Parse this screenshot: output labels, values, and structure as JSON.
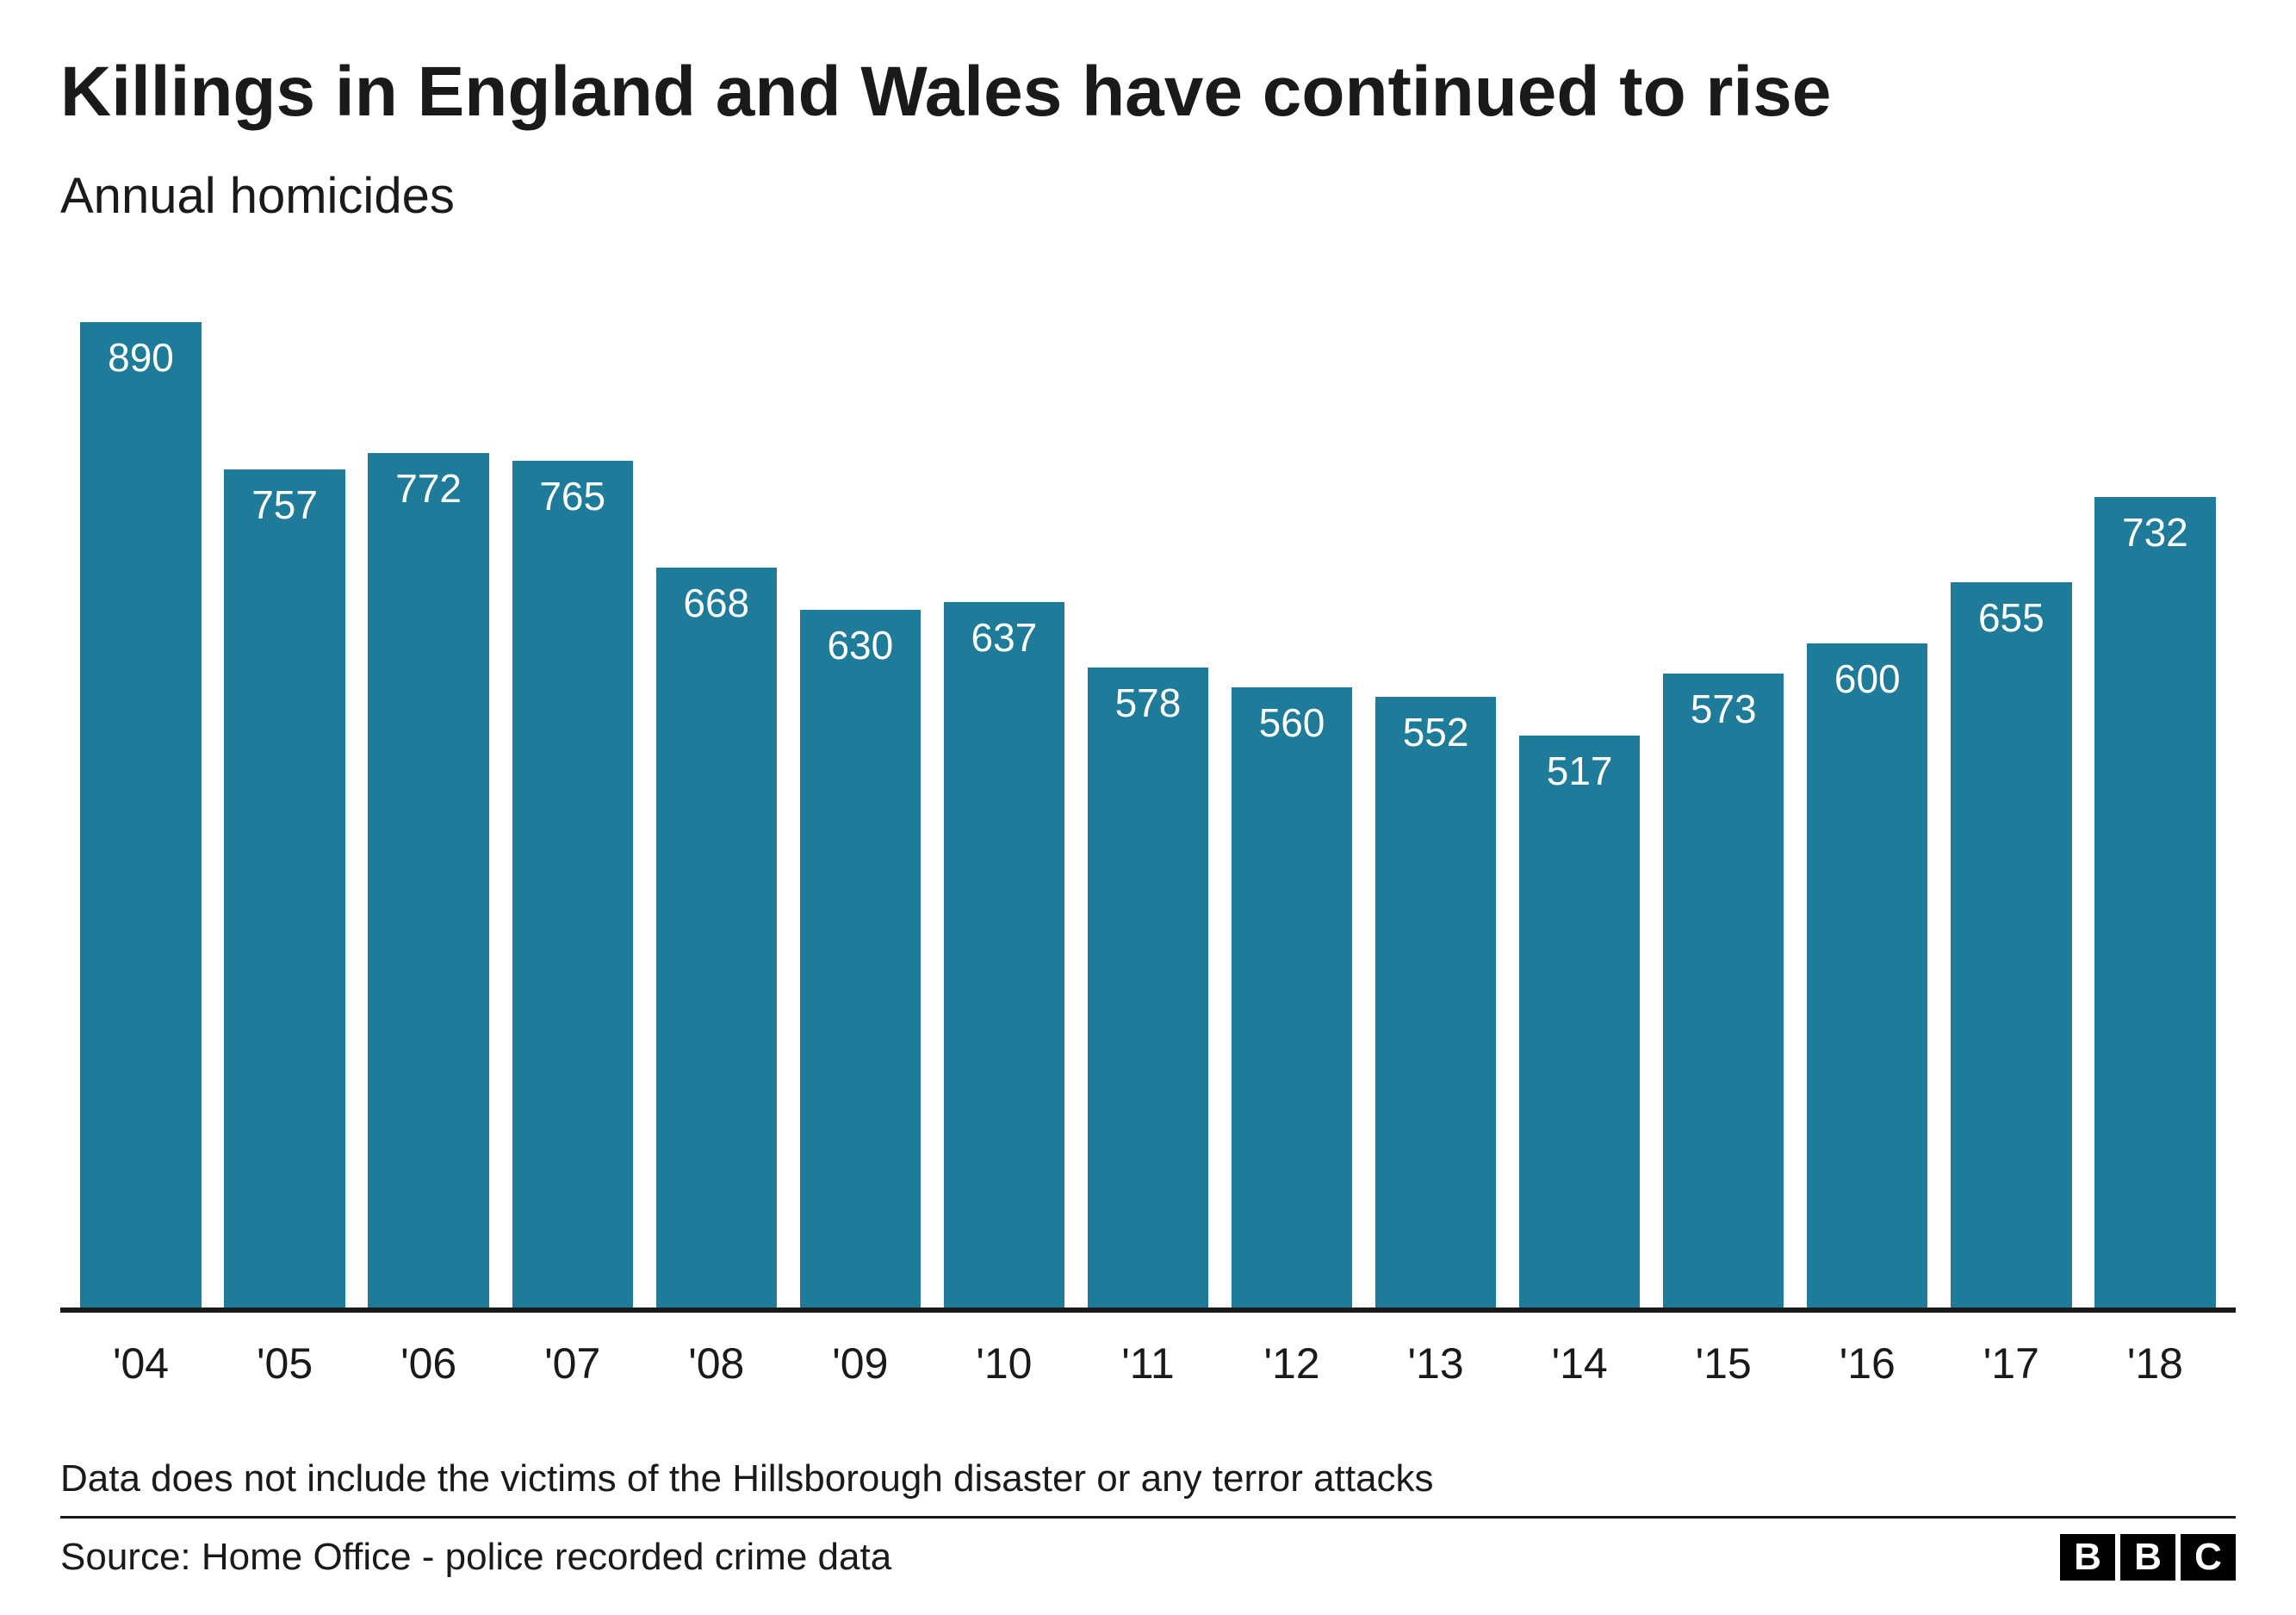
{
  "chart": {
    "type": "bar",
    "title": "Killings in England and Wales have continued to rise",
    "subtitle": "Annual homicides",
    "categories": [
      "'04",
      "'05",
      "'06",
      "'07",
      "'08",
      "'09",
      "'10",
      "'11",
      "'12",
      "'13",
      "'14",
      "'15",
      "'16",
      "'17",
      "'18"
    ],
    "values": [
      890,
      757,
      772,
      765,
      668,
      630,
      637,
      578,
      560,
      552,
      517,
      573,
      600,
      655,
      732
    ],
    "ymax": 900,
    "bar_color": "#1e7b99",
    "value_label_color": "#ffffff",
    "background_color": "#ffffff",
    "axis_color": "#1a1a1a",
    "title_fontsize": 82,
    "subtitle_fontsize": 58,
    "value_fontsize": 46,
    "xaxis_fontsize": 50,
    "footnote_fontsize": 44,
    "source_fontsize": 44,
    "bar_width_pct": 84,
    "footnote": "Data does not include the victims of the Hillsborough disaster or any terror attacks",
    "source": "Source: Home Office - police recorded crime data",
    "logo_letters": [
      "B",
      "B",
      "C"
    ]
  }
}
